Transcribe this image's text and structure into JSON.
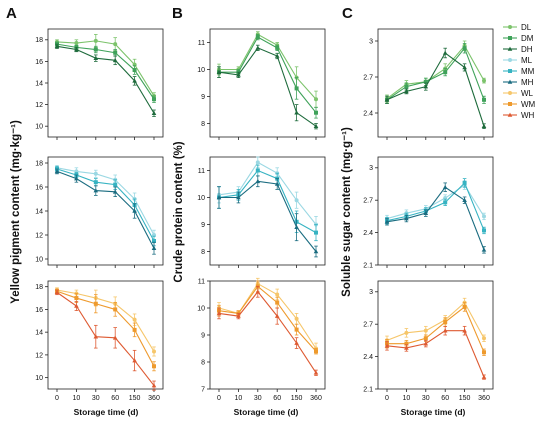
{
  "panel_letters": [
    "A",
    "B",
    "C"
  ],
  "y_labels": [
    "Yellow pigment content (mg·kg⁻¹)",
    "Crude protein content (%)",
    "Soluble sugar content (mg·g⁻¹)"
  ],
  "x_label": "Storage time (d)",
  "colors": {
    "DL": "#7cc36b",
    "DM": "#3fa25a",
    "DH": "#1e6b3c",
    "ML": "#9bd8e3",
    "MM": "#36b3c2",
    "MH": "#1a6c80",
    "WL": "#f6c66a",
    "WM": "#ee9a2d",
    "WH": "#de5a32"
  },
  "legend": [
    {
      "key": "DL",
      "label": "DL",
      "marker": "circle"
    },
    {
      "key": "DM",
      "label": "DM",
      "marker": "square"
    },
    {
      "key": "DH",
      "label": "DH",
      "marker": "triangle"
    },
    {
      "key": "ML",
      "label": "ML",
      "marker": "circle"
    },
    {
      "key": "MM",
      "label": "MM",
      "marker": "square"
    },
    {
      "key": "MH",
      "label": "MH",
      "marker": "triangle"
    },
    {
      "key": "WL",
      "label": "WL",
      "marker": "circle"
    },
    {
      "key": "WM",
      "label": "WM",
      "marker": "square"
    },
    {
      "key": "WH",
      "label": "WH",
      "marker": "triangle"
    }
  ],
  "chart_data": [
    {
      "type": "line",
      "panel": "A",
      "row": 1,
      "x": [
        "0",
        "10",
        "30",
        "60",
        "150",
        "360"
      ],
      "ylim": [
        9,
        19
      ],
      "yticks": [
        10,
        12,
        14,
        16,
        18
      ],
      "series": [
        {
          "name": "DL",
          "values": [
            17.8,
            17.7,
            17.9,
            17.6,
            15.7,
            12.8
          ],
          "err": [
            0.2,
            0.3,
            0.6,
            0.6,
            0.5,
            0.3
          ]
        },
        {
          "name": "DM",
          "values": [
            17.6,
            17.3,
            17.1,
            16.8,
            15.2,
            12.5
          ],
          "err": [
            0.2,
            0.2,
            0.3,
            0.3,
            0.4,
            0.3
          ]
        },
        {
          "name": "DH",
          "values": [
            17.4,
            17.1,
            16.3,
            16.1,
            14.2,
            11.2
          ],
          "err": [
            0.2,
            0.2,
            0.3,
            0.4,
            0.4,
            0.3
          ]
        }
      ]
    },
    {
      "type": "line",
      "panel": "A",
      "row": 2,
      "x": [
        "0",
        "10",
        "30",
        "60",
        "150",
        "360"
      ],
      "ylim": [
        9.5,
        18.5
      ],
      "yticks": [
        10,
        12,
        14,
        16,
        18
      ],
      "series": [
        {
          "name": "ML",
          "values": [
            17.6,
            17.3,
            17.1,
            16.6,
            15.0,
            12.0
          ],
          "err": [
            0.2,
            0.3,
            0.3,
            0.4,
            0.5,
            0.4
          ]
        },
        {
          "name": "MM",
          "values": [
            17.5,
            17.0,
            16.4,
            16.2,
            14.5,
            11.5
          ],
          "err": [
            0.2,
            0.2,
            0.3,
            0.4,
            0.5,
            0.4
          ]
        },
        {
          "name": "MH",
          "values": [
            17.3,
            16.7,
            15.7,
            15.6,
            14.0,
            10.9
          ],
          "err": [
            0.2,
            0.3,
            0.4,
            0.4,
            0.6,
            0.5
          ]
        }
      ]
    },
    {
      "type": "line",
      "panel": "A",
      "row": 3,
      "x": [
        "0",
        "10",
        "30",
        "60",
        "150",
        "360"
      ],
      "ylim": [
        9,
        18.5
      ],
      "yticks": [
        10,
        12,
        14,
        16,
        18
      ],
      "series": [
        {
          "name": "WL",
          "values": [
            17.7,
            17.4,
            17.0,
            16.5,
            15.1,
            12.3
          ],
          "err": [
            0.2,
            0.3,
            0.7,
            0.6,
            0.5,
            0.4
          ]
        },
        {
          "name": "WM",
          "values": [
            17.6,
            17.0,
            16.5,
            16.0,
            14.2,
            11.0
          ],
          "err": [
            0.2,
            0.4,
            0.8,
            0.6,
            0.6,
            0.4
          ]
        },
        {
          "name": "WH",
          "values": [
            17.5,
            16.3,
            13.6,
            13.5,
            11.5,
            9.3
          ],
          "err": [
            0.2,
            0.4,
            1.0,
            0.9,
            0.9,
            0.4
          ]
        }
      ]
    },
    {
      "type": "line",
      "panel": "B",
      "row": 1,
      "x": [
        "0",
        "10",
        "30",
        "60",
        "150",
        "360"
      ],
      "ylim": [
        7.5,
        11.5
      ],
      "yticks": [
        8,
        9,
        10,
        11
      ],
      "series": [
        {
          "name": "DL",
          "values": [
            10.0,
            10.0,
            11.3,
            10.9,
            9.7,
            8.9
          ],
          "err": [
            0.2,
            0.1,
            0.1,
            0.1,
            0.4,
            0.3
          ]
        },
        {
          "name": "DM",
          "values": [
            9.9,
            9.9,
            11.2,
            10.8,
            9.3,
            8.4
          ],
          "err": [
            0.2,
            0.1,
            0.1,
            0.1,
            0.4,
            0.2
          ]
        },
        {
          "name": "DH",
          "values": [
            9.9,
            9.8,
            10.8,
            10.5,
            8.4,
            7.9
          ],
          "err": [
            0.2,
            0.1,
            0.1,
            0.1,
            0.3,
            0.1
          ]
        }
      ]
    },
    {
      "type": "line",
      "panel": "B",
      "row": 2,
      "x": [
        "0",
        "10",
        "30",
        "60",
        "150",
        "360"
      ],
      "ylim": [
        7.5,
        11.5
      ],
      "yticks": [
        8,
        9,
        10,
        11
      ],
      "series": [
        {
          "name": "ML",
          "values": [
            10.1,
            10.2,
            11.3,
            10.9,
            9.9,
            9.0
          ],
          "err": [
            0.3,
            0.2,
            0.2,
            0.2,
            0.3,
            0.3
          ]
        },
        {
          "name": "MM",
          "values": [
            10.0,
            10.1,
            11.0,
            10.7,
            9.1,
            8.7
          ],
          "err": [
            0.4,
            0.2,
            0.2,
            0.2,
            0.4,
            0.3
          ]
        },
        {
          "name": "MH",
          "values": [
            10.0,
            10.0,
            10.6,
            10.5,
            8.9,
            8.0
          ],
          "err": [
            0.4,
            0.2,
            0.2,
            0.2,
            0.5,
            0.2
          ]
        }
      ]
    },
    {
      "type": "line",
      "panel": "B",
      "row": 3,
      "x": [
        "0",
        "10",
        "30",
        "60",
        "150",
        "360"
      ],
      "ylim": [
        7,
        11
      ],
      "yticks": [
        7,
        8,
        9,
        10,
        11
      ],
      "series": [
        {
          "name": "WL",
          "values": [
            10.0,
            9.8,
            10.9,
            10.5,
            9.6,
            8.5
          ],
          "err": [
            0.2,
            0.1,
            0.2,
            0.2,
            0.2,
            0.2
          ]
        },
        {
          "name": "WM",
          "values": [
            9.9,
            9.8,
            10.8,
            10.2,
            9.2,
            8.4
          ],
          "err": [
            0.2,
            0.1,
            0.2,
            0.2,
            0.2,
            0.1
          ]
        },
        {
          "name": "WH",
          "values": [
            9.8,
            9.7,
            10.6,
            9.7,
            8.7,
            7.6
          ],
          "err": [
            0.2,
            0.1,
            0.2,
            0.3,
            0.2,
            0.1
          ]
        }
      ]
    },
    {
      "type": "line",
      "panel": "C",
      "row": 1,
      "x": [
        "0",
        "10",
        "30",
        "60",
        "150",
        "360"
      ],
      "ylim": [
        2.2,
        3.1
      ],
      "yticks": [
        2.4,
        2.7,
        3.0
      ],
      "series": [
        {
          "name": "DL",
          "values": [
            2.52,
            2.64,
            2.66,
            2.77,
            2.96,
            2.67
          ],
          "err": [
            0.03,
            0.03,
            0.03,
            0.04,
            0.04,
            0.02
          ]
        },
        {
          "name": "DM",
          "values": [
            2.51,
            2.62,
            2.66,
            2.74,
            2.94,
            2.51
          ],
          "err": [
            0.03,
            0.03,
            0.03,
            0.03,
            0.04,
            0.03
          ]
        },
        {
          "name": "DH",
          "values": [
            2.51,
            2.58,
            2.62,
            2.9,
            2.78,
            2.29
          ],
          "err": [
            0.03,
            0.02,
            0.03,
            0.04,
            0.03,
            0.02
          ]
        }
      ]
    },
    {
      "type": "line",
      "panel": "C",
      "row": 2,
      "x": [
        "0",
        "10",
        "30",
        "60",
        "150",
        "360"
      ],
      "ylim": [
        2.1,
        3.1
      ],
      "yticks": [
        2.1,
        2.4,
        2.7,
        3.0
      ],
      "series": [
        {
          "name": "ML",
          "values": [
            2.53,
            2.58,
            2.62,
            2.72,
            2.84,
            2.55
          ],
          "err": [
            0.03,
            0.03,
            0.03,
            0.03,
            0.04,
            0.03
          ]
        },
        {
          "name": "MM",
          "values": [
            2.51,
            2.55,
            2.6,
            2.68,
            2.86,
            2.42
          ],
          "err": [
            0.03,
            0.03,
            0.03,
            0.03,
            0.04,
            0.03
          ]
        },
        {
          "name": "MH",
          "values": [
            2.5,
            2.53,
            2.58,
            2.82,
            2.7,
            2.24
          ],
          "err": [
            0.03,
            0.03,
            0.03,
            0.04,
            0.03,
            0.03
          ]
        }
      ]
    },
    {
      "type": "line",
      "panel": "C",
      "row": 3,
      "x": [
        "0",
        "10",
        "30",
        "60",
        "150",
        "360"
      ],
      "ylim": [
        2.1,
        3.1
      ],
      "yticks": [
        2.1,
        2.4,
        2.7,
        3.0
      ],
      "series": [
        {
          "name": "WL",
          "values": [
            2.55,
            2.62,
            2.64,
            2.74,
            2.9,
            2.57
          ],
          "err": [
            0.04,
            0.04,
            0.04,
            0.04,
            0.04,
            0.03
          ]
        },
        {
          "name": "WM",
          "values": [
            2.52,
            2.52,
            2.57,
            2.72,
            2.86,
            2.44
          ],
          "err": [
            0.04,
            0.03,
            0.03,
            0.04,
            0.04,
            0.03
          ]
        },
        {
          "name": "WH",
          "values": [
            2.5,
            2.48,
            2.52,
            2.64,
            2.64,
            2.21
          ],
          "err": [
            0.04,
            0.03,
            0.03,
            0.04,
            0.04,
            0.02
          ]
        }
      ]
    }
  ]
}
